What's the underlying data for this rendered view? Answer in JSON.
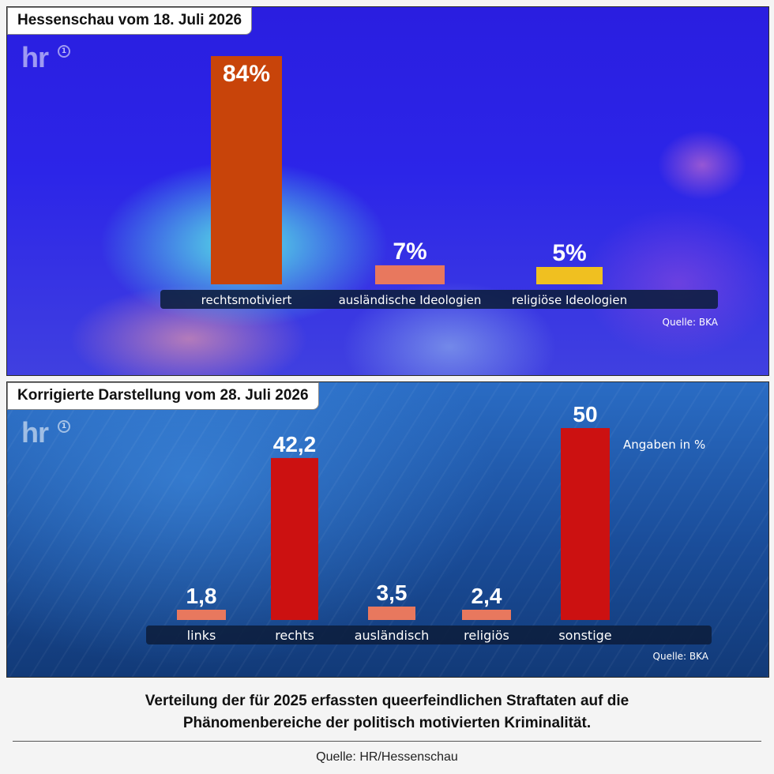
{
  "panels": [
    {
      "badge": "Hessenschau vom 18. Juli 2026",
      "logo": "hr",
      "logo_mark": "1",
      "source": "Quelle: BKA"
    },
    {
      "badge": "Korrigierte Darstellung vom 28. Juli 2026",
      "logo": "hr",
      "logo_mark": "1",
      "source": "Quelle: BKA",
      "unit_note": "Angaben in %"
    }
  ],
  "chart_data": [
    {
      "type": "bar",
      "categories": [
        "rechtsmotiviert",
        "ausländische Ideologien",
        "religiöse Ideologien"
      ],
      "values": [
        84,
        7,
        5
      ],
      "value_labels": [
        "84%",
        "7%",
        "5%"
      ],
      "bar_colors": [
        "#c8440a",
        "#e8785e",
        "#f0c020"
      ],
      "ylim": [
        0,
        84
      ],
      "grid": false
    },
    {
      "type": "bar",
      "categories": [
        "links",
        "rechts",
        "ausländisch",
        "religiös",
        "sonstige"
      ],
      "values": [
        1.8,
        42.2,
        3.5,
        2.4,
        50
      ],
      "value_labels": [
        "1,8",
        "42,2",
        "3,5",
        "2,4",
        "50"
      ],
      "bar_colors": [
        "#e8785e",
        "#cc1111",
        "#e8785e",
        "#e8785e",
        "#cc1111"
      ],
      "ylim": [
        0,
        50
      ],
      "grid": false
    }
  ],
  "caption": {
    "line1": "Verteilung der für 2025 erfassten queerfeindlichen Straftaten auf die",
    "line2": "Phänomenbereiche der politisch motivierten Kriminalität."
  },
  "footer_source": "Quelle: HR/Hessenschau"
}
